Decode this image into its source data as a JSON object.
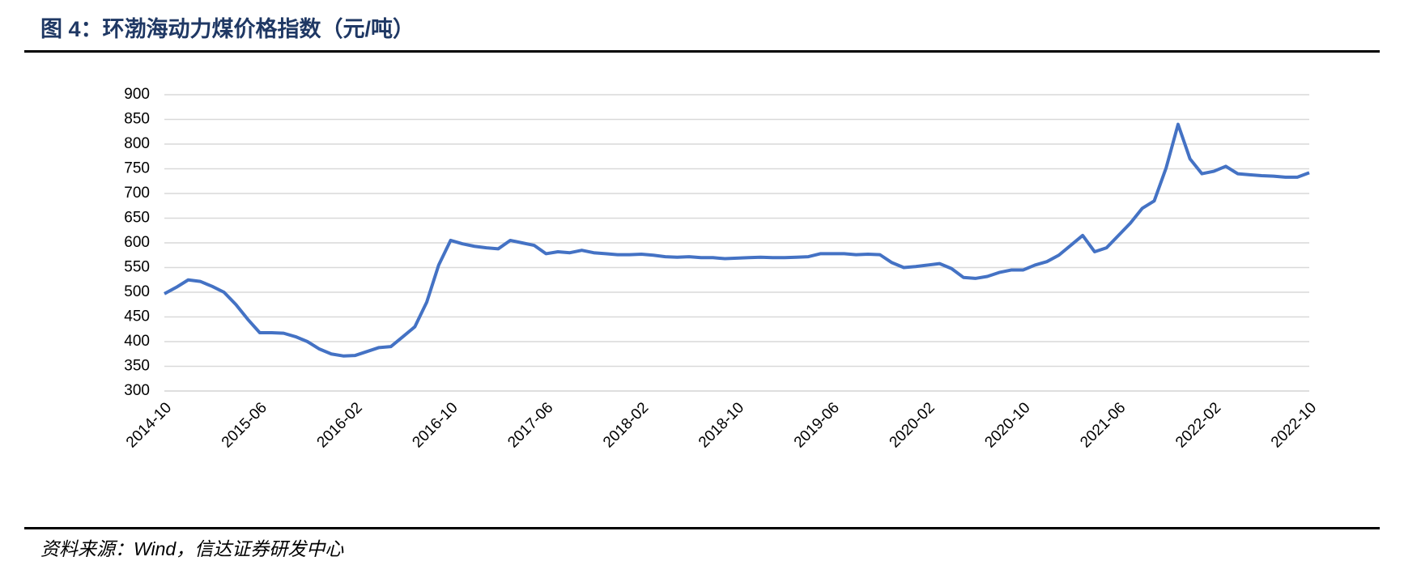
{
  "header": {
    "title": "图 4：环渤海动力煤价格指数（元/吨）"
  },
  "chart_data": {
    "type": "line",
    "categories": [
      "2014-10",
      null,
      null,
      null,
      null,
      null,
      null,
      null,
      "2015-06",
      null,
      null,
      null,
      null,
      null,
      null,
      null,
      "2016-02",
      null,
      null,
      null,
      null,
      null,
      null,
      null,
      "2016-10",
      null,
      null,
      null,
      null,
      null,
      null,
      null,
      "2017-06",
      null,
      null,
      null,
      null,
      null,
      null,
      null,
      "2018-02",
      null,
      null,
      null,
      null,
      null,
      null,
      null,
      "2018-10",
      null,
      null,
      null,
      null,
      null,
      null,
      null,
      "2019-06",
      null,
      null,
      null,
      null,
      null,
      null,
      null,
      "2020-02",
      null,
      null,
      null,
      null,
      null,
      null,
      null,
      "2020-10",
      null,
      null,
      null,
      null,
      null,
      null,
      null,
      "2021-06",
      null,
      null,
      null,
      null,
      null,
      null,
      null,
      "2022-02",
      null,
      null,
      null,
      null,
      null,
      null,
      null,
      "2022-10"
    ],
    "values": [
      497,
      510,
      525,
      522,
      512,
      500,
      475,
      445,
      418,
      418,
      417,
      410,
      400,
      385,
      375,
      371,
      372,
      380,
      388,
      390,
      410,
      430,
      480,
      555,
      605,
      598,
      593,
      590,
      588,
      605,
      600,
      595,
      578,
      582,
      580,
      585,
      580,
      578,
      576,
      576,
      577,
      575,
      572,
      571,
      572,
      570,
      570,
      568,
      569,
      570,
      571,
      570,
      570,
      571,
      572,
      578,
      578,
      578,
      576,
      577,
      576,
      560,
      550,
      552,
      555,
      558,
      548,
      530,
      528,
      532,
      540,
      545,
      545,
      555,
      562,
      575,
      595,
      615,
      582,
      590,
      615,
      640,
      670,
      685,
      752,
      840,
      770,
      740,
      745,
      755,
      740,
      738,
      736,
      735,
      733,
      733,
      742
    ],
    "color": "#4472c4",
    "ylim": [
      300,
      900
    ],
    "yticks": [
      300,
      350,
      400,
      450,
      500,
      550,
      600,
      650,
      700,
      750,
      800,
      850,
      900
    ],
    "grid": true
  },
  "footer": {
    "source": "资料来源：Wind，信达证券研发中心"
  }
}
